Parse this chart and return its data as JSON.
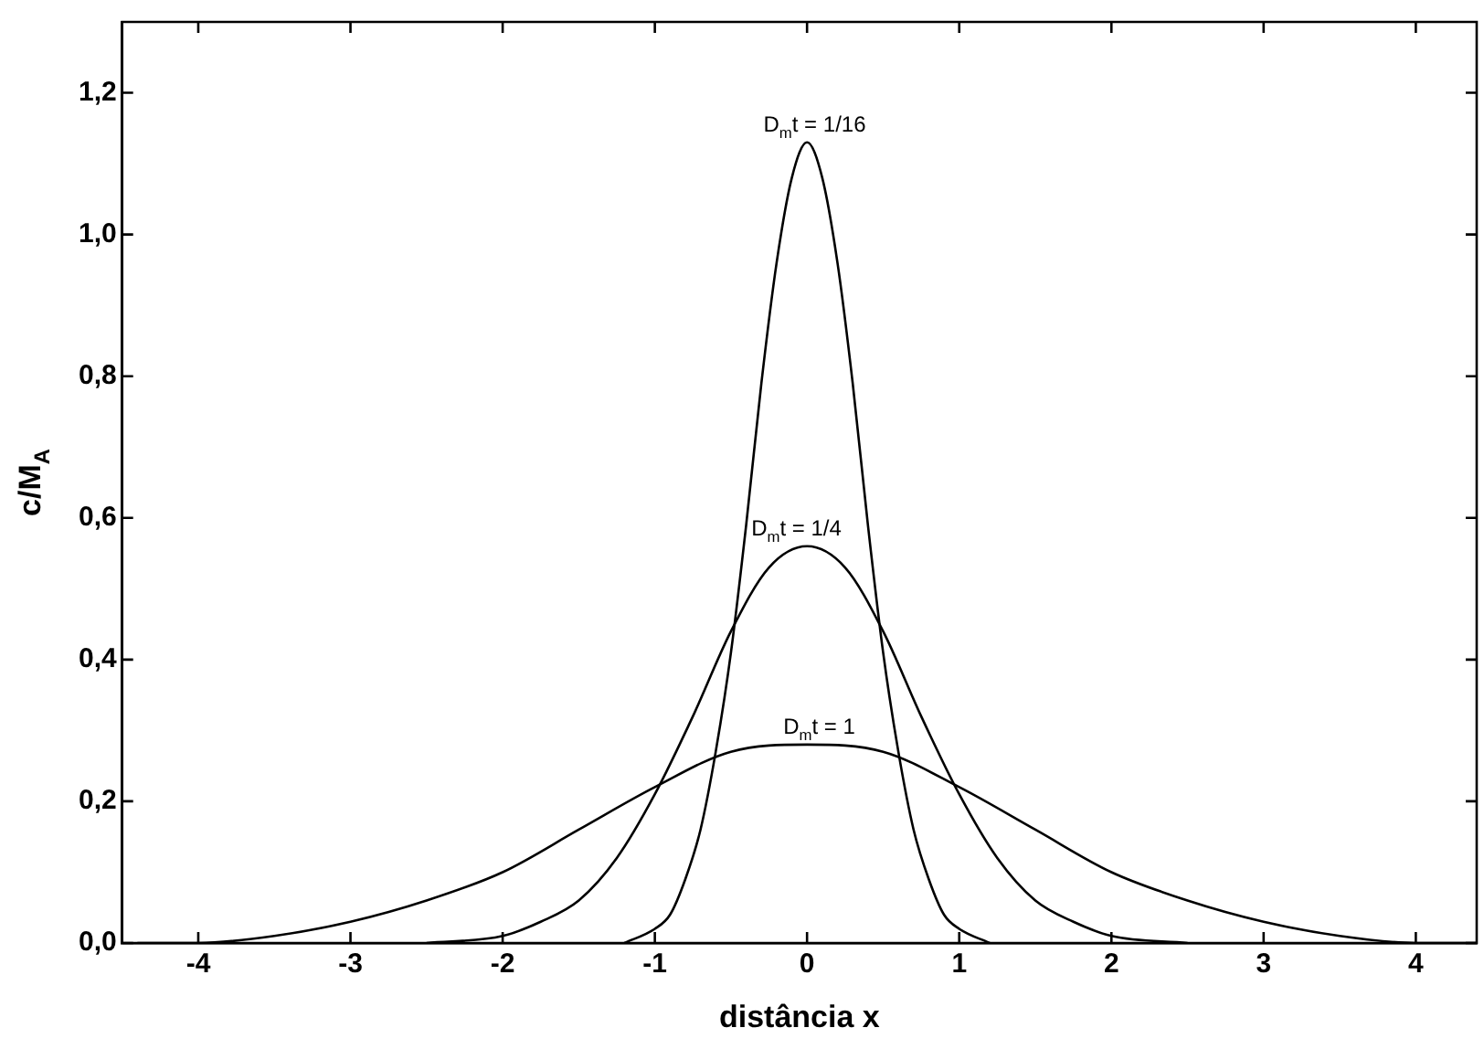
{
  "chart_data": {
    "type": "line",
    "xlabel": "distância x",
    "ylabel": "c/M$_{A}$",
    "xlim": [
      -4.5,
      4.4
    ],
    "ylim": [
      0,
      1.3
    ],
    "xticks": [
      -4,
      -3,
      -2,
      -1,
      0,
      1,
      2,
      3,
      4
    ],
    "yticks": [
      {
        "value": 0,
        "label": "0,0"
      },
      {
        "value": 0.2,
        "label": "0,2"
      },
      {
        "value": 0.4,
        "label": "0,4"
      },
      {
        "value": 0.6,
        "label": "0,6"
      },
      {
        "value": 0.8,
        "label": "0,8"
      },
      {
        "value": 1.0,
        "label": "1,0"
      },
      {
        "value": 1.2,
        "label": "1,2"
      }
    ],
    "grid": false,
    "legend": false,
    "marker": "none",
    "line_style": "solid",
    "series": [
      {
        "color": "#000000",
        "x": [
          -1.2,
          -1.0,
          -0.9,
          -0.8,
          -0.7,
          -0.6,
          -0.5,
          -0.4,
          -0.3,
          -0.2,
          -0.1,
          0,
          0.1,
          0.2,
          0.3,
          0.4,
          0.5,
          0.6,
          0.7,
          0.8,
          0.9,
          1.0,
          1.2
        ],
        "values": [
          0.0,
          0.02,
          0.04,
          0.09,
          0.16,
          0.27,
          0.41,
          0.59,
          0.79,
          0.96,
          1.08,
          1.13,
          1.08,
          0.96,
          0.79,
          0.59,
          0.41,
          0.27,
          0.16,
          0.09,
          0.04,
          0.02,
          0.0
        ]
      },
      {
        "color": "#000000",
        "x": [
          -2.5,
          -2,
          -1.75,
          -1.5,
          -1.25,
          -1,
          -0.75,
          -0.5,
          -0.25,
          0,
          0.25,
          0.5,
          0.75,
          1,
          1.25,
          1.5,
          1.75,
          2,
          2.5
        ],
        "values": [
          0.0,
          0.01,
          0.03,
          0.06,
          0.12,
          0.21,
          0.32,
          0.44,
          0.53,
          0.56,
          0.53,
          0.44,
          0.32,
          0.21,
          0.12,
          0.06,
          0.03,
          0.01,
          0.0
        ]
      },
      {
        "color": "#000000",
        "x": [
          -4.4,
          -4,
          -3.5,
          -3,
          -2.5,
          -2,
          -1.5,
          -1,
          -0.5,
          0,
          0.5,
          1,
          1.5,
          2,
          2.5,
          3,
          3.5,
          4,
          4.4
        ],
        "values": [
          0.0,
          0.0,
          0.01,
          0.03,
          0.06,
          0.1,
          0.16,
          0.22,
          0.27,
          0.28,
          0.27,
          0.22,
          0.16,
          0.1,
          0.06,
          0.03,
          0.01,
          0.0,
          0.0
        ]
      }
    ],
    "annotations": [
      {
        "text": "D$_{m}$t = 1/16",
        "x": 0.05,
        "y": 1.13
      },
      {
        "text": "D$_{m}$t = 1/4",
        "x": -0.07,
        "y": 0.56
      },
      {
        "text": "D$_{m}$t = 1",
        "x": 0.08,
        "y": 0.28
      }
    ]
  }
}
